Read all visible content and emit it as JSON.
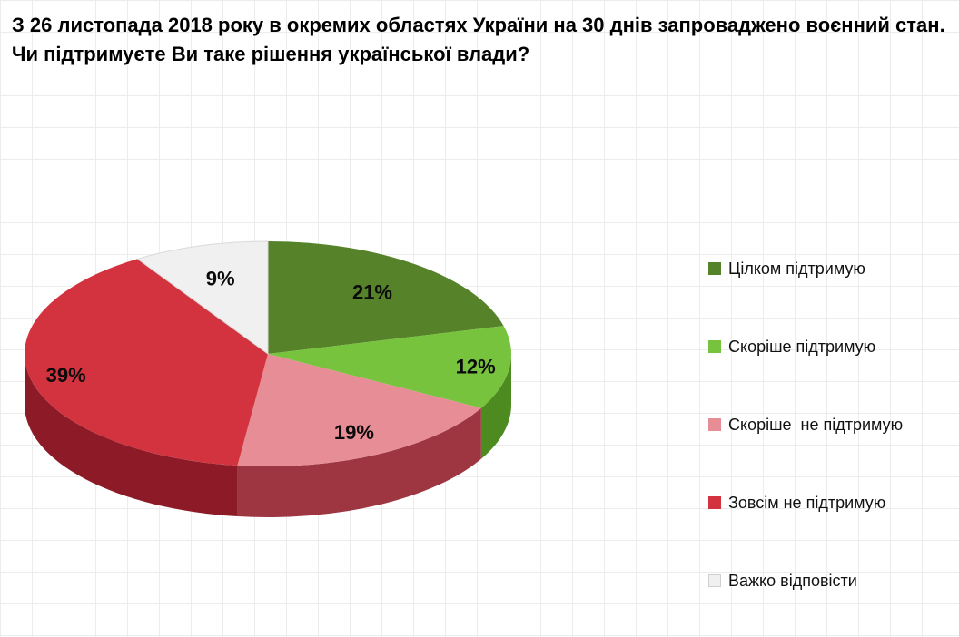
{
  "page": {
    "background": "#ffffff",
    "grid_color": "#ececec"
  },
  "title": {
    "text": "З 26 листопада 2018 року в окремих областях України на 30 днів запроваджено воєнний стан. Чи підтримуєте Ви таке рішення української влади?"
  },
  "chart_data": {
    "type": "pie",
    "effect": "3d",
    "title": "З 26 листопада 2018 року в окремих областях України на 30 днів запроваджено воєнний стан. Чи підтримуєте Ви таке рішення української влади?",
    "labels": [
      "Цілком підтримую",
      "Скоріше підтримую",
      "Скоріше  не підтримую",
      "Зовсім не підтримую",
      "Важко відповісти"
    ],
    "values": [
      21,
      12,
      19,
      39,
      9
    ],
    "unit": "%",
    "colors": [
      "#568229",
      "#77c33e",
      "#e78d96",
      "#d2333e",
      "#f0f0f0"
    ],
    "side_colors": [
      "#3a5c17",
      "#4d8a1f",
      "#9e3642",
      "#8c1b27",
      "#cfcfcf"
    ],
    "slice_strokes": [
      "",
      "",
      "",
      "",
      "#d9d9d9"
    ],
    "swatch_borders": [
      "",
      "",
      "",
      "",
      "#cfcfcf"
    ],
    "start_angle_deg": 0,
    "direction": "clockwise",
    "legend_position": "right"
  }
}
